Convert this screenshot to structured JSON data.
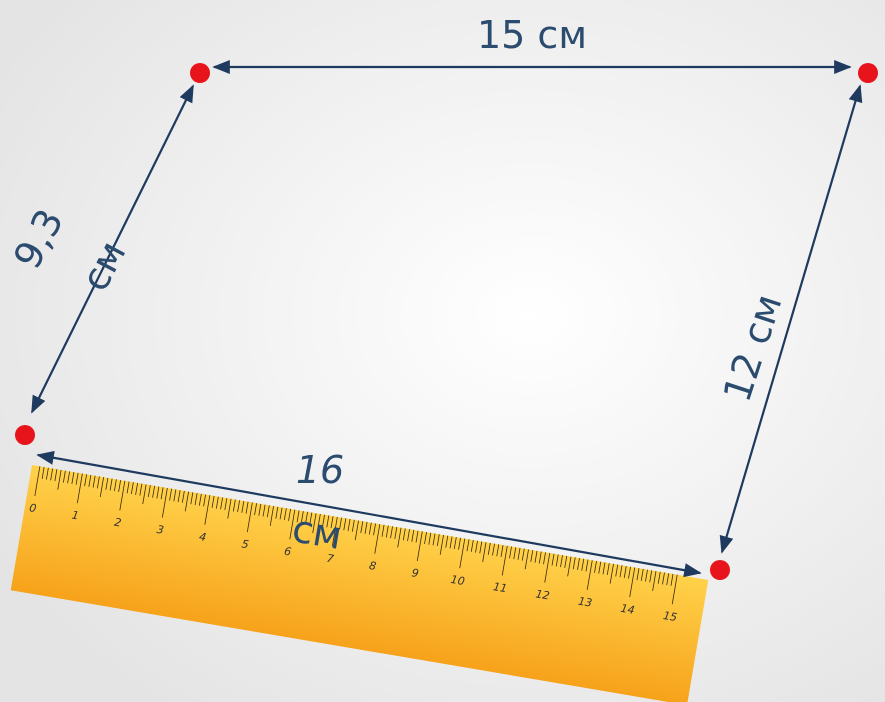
{
  "edges": {
    "top": "15 см",
    "left": [
      "9,3",
      "см"
    ],
    "right": "12 см",
    "bottom": [
      "16",
      "см"
    ]
  },
  "ruler": {
    "labels": [
      "0",
      "1",
      "2",
      "3",
      "4",
      "5",
      "6",
      "7",
      "8",
      "9",
      "10",
      "11",
      "12",
      "13",
      "14",
      "15"
    ]
  }
}
